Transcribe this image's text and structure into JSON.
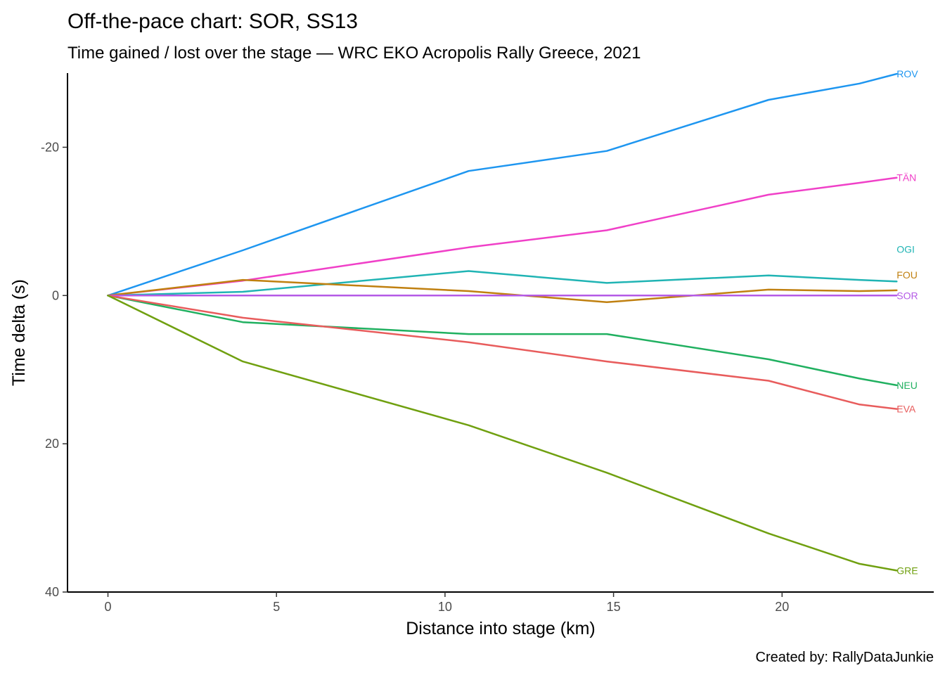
{
  "chart_data": {
    "type": "line",
    "title": "Off-the-pace chart: SOR, SS13",
    "subtitle": "Time gained / lost over the stage — WRC EKO Acropolis Rally Greece, 2021",
    "xlabel": "Distance into stage (km)",
    "ylabel": "Time delta (s)",
    "caption": "Created by: RallyDataJunkie",
    "xlim": [
      -1.2,
      24.5
    ],
    "ylim": [
      -30,
      40
    ],
    "y_reversed": true,
    "x_ticks": [
      0,
      5,
      10,
      15,
      20
    ],
    "y_ticks": [
      -20,
      0,
      20,
      40
    ],
    "grid": false,
    "legend": "none (direct end labels)",
    "series": [
      {
        "name": "ROV",
        "color": "#1e96f0",
        "x": [
          0,
          4.0,
          10.7,
          14.8,
          19.6,
          22.3,
          23.4
        ],
        "y": [
          0,
          -6.1,
          -16.8,
          -19.5,
          -26.4,
          -28.6,
          -29.9
        ]
      },
      {
        "name": "TÄN",
        "color": "#f040c8",
        "x": [
          0,
          4.0,
          10.7,
          14.8,
          19.6,
          22.3,
          23.4
        ],
        "y": [
          0,
          -2.0,
          -6.5,
          -8.8,
          -13.6,
          -15.2,
          -15.9
        ]
      },
      {
        "name": "OGI",
        "color": "#20b4b4",
        "x": [
          0,
          4.0,
          10.7,
          14.8,
          19.6,
          22.3,
          23.4
        ],
        "y": [
          0,
          -0.5,
          -3.3,
          -1.7,
          -2.7,
          -2.1,
          -1.9
        ]
      },
      {
        "name": "FOU",
        "color": "#c08010",
        "x": [
          0,
          4.0,
          10.7,
          14.8,
          19.6,
          22.3,
          23.4
        ],
        "y": [
          0,
          -2.1,
          -0.6,
          0.9,
          -0.8,
          -0.6,
          -0.7
        ]
      },
      {
        "name": "SOR",
        "color": "#b45ae6",
        "x": [
          0,
          4.0,
          10.7,
          14.8,
          19.6,
          22.3,
          23.4
        ],
        "y": [
          0,
          0,
          0,
          0,
          0,
          0,
          0
        ]
      },
      {
        "name": "NEU",
        "color": "#20b060",
        "x": [
          0,
          4.0,
          10.7,
          14.8,
          19.6,
          22.3,
          23.4
        ],
        "y": [
          0,
          3.6,
          5.2,
          5.2,
          8.6,
          11.2,
          12.1
        ]
      },
      {
        "name": "EVA",
        "color": "#e85c5c",
        "x": [
          0,
          4.0,
          10.7,
          14.8,
          19.6,
          22.3,
          23.4
        ],
        "y": [
          0,
          3.0,
          6.3,
          8.9,
          11.5,
          14.7,
          15.3
        ]
      },
      {
        "name": "GRE",
        "color": "#70a010",
        "x": [
          0,
          4.0,
          10.7,
          14.8,
          19.6,
          22.3,
          23.4
        ],
        "y": [
          0,
          8.9,
          17.5,
          23.9,
          32.1,
          36.2,
          37.1
        ]
      }
    ]
  }
}
